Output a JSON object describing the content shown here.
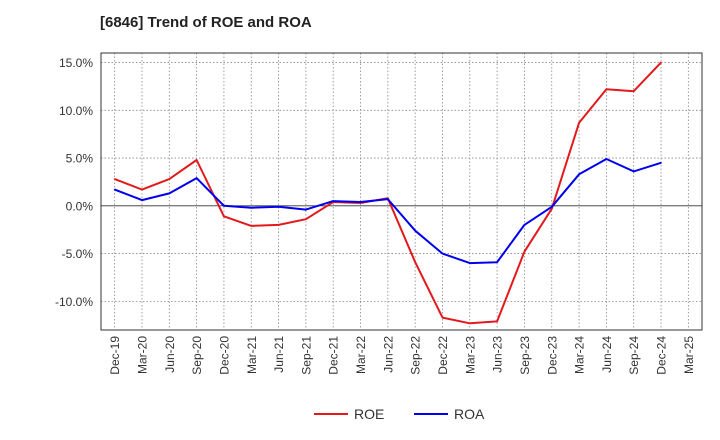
{
  "chart_data": {
    "type": "line",
    "title": "[6846]  Trend of ROE and ROA",
    "x": [
      "Dec-19",
      "Mar-20",
      "Jun-20",
      "Sep-20",
      "Dec-20",
      "Mar-21",
      "Jun-21",
      "Sep-21",
      "Dec-21",
      "Mar-22",
      "Jun-22",
      "Sep-22",
      "Dec-22",
      "Mar-23",
      "Jun-23",
      "Sep-23",
      "Dec-23",
      "Mar-24",
      "Jun-24",
      "Sep-24",
      "Dec-24",
      "Mar-25"
    ],
    "yticks": [
      15.0,
      10.0,
      5.0,
      0.0,
      -5.0,
      -10.0
    ],
    "ytick_labels": [
      "15.0%",
      "10.0%",
      "5.0%",
      "0.0%",
      "-5.0%",
      "-10.0%"
    ],
    "ylim": [
      -13.0,
      16.0
    ],
    "grid": true,
    "legend_position": "bottom",
    "series": [
      {
        "name": "ROE",
        "color": "#e31a1c",
        "values": [
          2.8,
          1.7,
          2.8,
          4.8,
          -1.1,
          -2.1,
          -2.0,
          -1.4,
          0.4,
          0.3,
          0.8,
          -5.9,
          -11.7,
          -12.3,
          -12.1,
          -4.8,
          -0.3,
          8.7,
          12.2,
          12.0,
          15.0,
          null
        ]
      },
      {
        "name": "ROA",
        "color": "#0000ee",
        "values": [
          1.7,
          0.6,
          1.3,
          2.9,
          0.0,
          -0.2,
          -0.1,
          -0.4,
          0.5,
          0.4,
          0.7,
          -2.6,
          -5.0,
          -6.0,
          -5.9,
          -2.0,
          -0.1,
          3.3,
          4.9,
          3.6,
          4.5,
          null
        ]
      }
    ]
  }
}
